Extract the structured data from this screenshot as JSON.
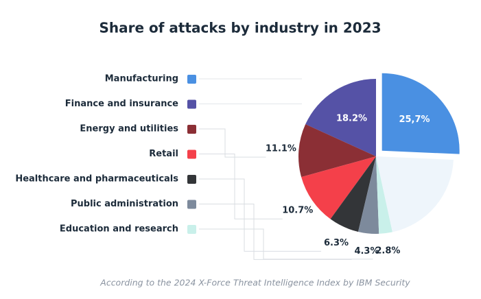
{
  "chart_data": {
    "type": "pie",
    "title": "Share of attacks by industry in 2023",
    "categories": [
      "Manufacturing",
      "Finance and insurance",
      "Energy and utilities",
      "Retail",
      "Healthcare and pharmaceuticals",
      "Public administration",
      "Education and research",
      null
    ],
    "values": [
      25.7,
      18.2,
      11.1,
      10.7,
      6.3,
      4.3,
      2.8,
      20.9
    ],
    "value_labels": [
      "25,7%",
      "18.2%",
      "11.1%",
      "10.7%",
      "6.3%",
      "4.3%",
      "2.8%",
      null
    ],
    "colors": [
      "#4a90e2",
      "#5552a6",
      "#8b2f35",
      "#f4404a",
      "#333538",
      "#7d8a9c",
      "#c9f0ea",
      "#eef5fb"
    ],
    "source": "According to the 2024 X-Force Threat Intelligence Index by IBM Security"
  }
}
